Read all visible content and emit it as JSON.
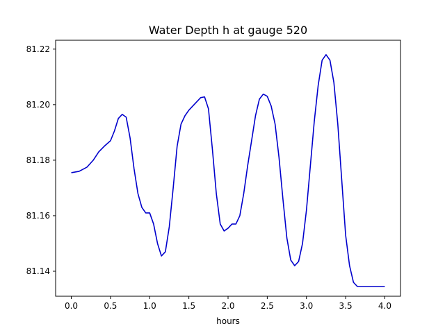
{
  "chart_data": {
    "type": "line",
    "title": "Water Depth h at gauge 520",
    "xlabel": "hours",
    "ylabel": "",
    "xlim": [
      -0.2,
      4.2
    ],
    "ylim": [
      81.131,
      81.2232
    ],
    "grid": false,
    "x_ticks": [
      {
        "value": 0.0,
        "label": "0.0"
      },
      {
        "value": 0.5,
        "label": "0.5"
      },
      {
        "value": 1.0,
        "label": "1.0"
      },
      {
        "value": 1.5,
        "label": "1.5"
      },
      {
        "value": 2.0,
        "label": "2.0"
      },
      {
        "value": 2.5,
        "label": "2.5"
      },
      {
        "value": 3.0,
        "label": "3.0"
      },
      {
        "value": 3.5,
        "label": "3.5"
      },
      {
        "value": 4.0,
        "label": "4.0"
      }
    ],
    "y_ticks": [
      {
        "value": 81.14,
        "label": "81.14"
      },
      {
        "value": 81.16,
        "label": "81.16"
      },
      {
        "value": 81.18,
        "label": "81.18"
      },
      {
        "value": 81.2,
        "label": "81.20"
      },
      {
        "value": 81.22,
        "label": "81.22"
      }
    ],
    "series": [
      {
        "color": "#0000cc",
        "x": [
          0.0,
          0.1,
          0.2,
          0.28,
          0.35,
          0.42,
          0.5,
          0.55,
          0.6,
          0.65,
          0.7,
          0.75,
          0.8,
          0.85,
          0.9,
          0.95,
          1.0,
          1.05,
          1.1,
          1.15,
          1.2,
          1.25,
          1.3,
          1.35,
          1.4,
          1.45,
          1.5,
          1.55,
          1.6,
          1.65,
          1.7,
          1.75,
          1.8,
          1.85,
          1.9,
          1.95,
          2.0,
          2.05,
          2.1,
          2.15,
          2.2,
          2.25,
          2.3,
          2.35,
          2.4,
          2.45,
          2.5,
          2.55,
          2.6,
          2.65,
          2.7,
          2.75,
          2.8,
          2.85,
          2.9,
          2.95,
          3.0,
          3.05,
          3.1,
          3.15,
          3.2,
          3.25,
          3.3,
          3.35,
          3.4,
          3.45,
          3.5,
          3.55,
          3.6,
          3.65,
          3.7,
          3.75,
          3.8,
          3.85,
          3.9,
          3.95,
          4.0
        ],
        "y": [
          81.1755,
          81.176,
          81.1775,
          81.18,
          81.183,
          81.185,
          81.187,
          81.1905,
          81.195,
          81.1965,
          81.1955,
          81.188,
          81.177,
          81.168,
          81.163,
          81.161,
          81.161,
          81.157,
          81.15,
          81.1455,
          81.147,
          81.156,
          81.17,
          81.185,
          81.193,
          81.196,
          81.198,
          81.1995,
          81.201,
          81.2025,
          81.2028,
          81.1985,
          81.184,
          81.168,
          81.157,
          81.1545,
          81.1555,
          81.157,
          81.157,
          81.16,
          81.168,
          81.178,
          81.187,
          81.196,
          81.202,
          81.2038,
          81.203,
          81.1995,
          81.193,
          81.181,
          81.166,
          81.152,
          81.144,
          81.142,
          81.1435,
          81.15,
          81.162,
          81.178,
          81.194,
          81.207,
          81.216,
          81.218,
          81.216,
          81.208,
          81.193,
          81.173,
          81.153,
          81.142,
          81.136,
          81.1345,
          81.1345,
          81.1345,
          81.1345,
          81.1345,
          81.1345,
          81.1345,
          81.1345
        ]
      }
    ]
  }
}
